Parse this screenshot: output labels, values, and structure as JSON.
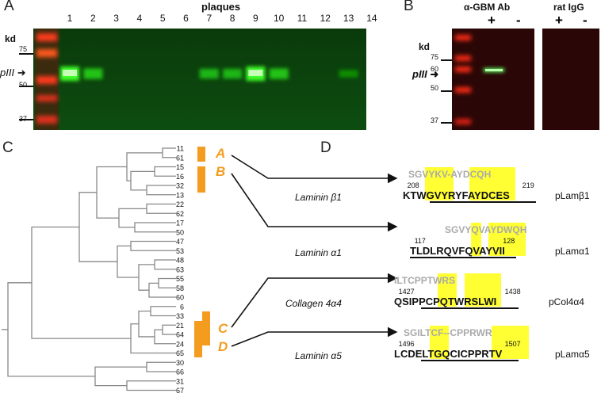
{
  "panels": {
    "A": "A",
    "B": "B",
    "C": "C",
    "D": "D"
  },
  "panel_a": {
    "title": "plaques",
    "kd_label": "kd",
    "band_label": "pIII",
    "lanes": [
      "1",
      "2",
      "3",
      "4",
      "5",
      "6",
      "7",
      "8",
      "9",
      "10",
      "11",
      "12",
      "13",
      "14"
    ],
    "signs": [
      "+",
      "+",
      "-",
      "-",
      "-",
      "-",
      "+",
      "+",
      "+",
      "+",
      "-",
      "-",
      "+/-",
      "-"
    ],
    "markers": [
      "75",
      "50",
      "37"
    ],
    "band_intensities": [
      1.0,
      0.55,
      0,
      0,
      0,
      0,
      0.45,
      0.45,
      1.0,
      0.55,
      0,
      0,
      0.15,
      0
    ]
  },
  "panel_b": {
    "antibody_label": "α-GBM Ab",
    "control_label": "rat IgG",
    "kd_label": "kd",
    "band_label": "pIII",
    "markers": [
      "75",
      "60",
      "50",
      "37"
    ],
    "signs": [
      "+",
      "-",
      "+",
      "-"
    ]
  },
  "panel_c": {
    "leaves": [
      "11",
      "61",
      "15",
      "16",
      "32",
      "13",
      "22",
      "62",
      "17",
      "50",
      "47",
      "53",
      "48",
      "63",
      "55",
      "58",
      "60",
      "6",
      "33",
      "21",
      "64",
      "24",
      "65",
      "30",
      "66",
      "31",
      "67"
    ],
    "groups": [
      "A",
      "B",
      "C",
      "D"
    ]
  },
  "panel_d": {
    "entries": [
      {
        "phage": "SGVYKV-AYDCQH",
        "start": "208",
        "end": "219",
        "seq": "KTWGVYRYFAYDCES",
        "name": "Laminin β1",
        "peptide": "pLamβ1"
      },
      {
        "phage": "SGVYQVAYDWQH",
        "start": "117",
        "end": "128",
        "seq": "TLDLRQVFQVAYVII",
        "name": "Laminin α1",
        "peptide": "pLamα1"
      },
      {
        "phage": "ILTCPPTWRS",
        "start": "1427",
        "end": "1438",
        "seq": "QSIPPCPQTWRSLWI",
        "name": "Collagen 4α4",
        "peptide": "pCol4α4"
      },
      {
        "phage": "SGILTCF--CPPRWR",
        "start": "1496",
        "end": "1507",
        "seq": "LCDELTGQCICPPRTV",
        "name": "Laminin α5",
        "peptide": "pLamα5"
      }
    ]
  },
  "colors": {
    "group_orange": "#f39c1f",
    "highlight": "#ffff33",
    "blot_green": "#0f4a0f"
  }
}
